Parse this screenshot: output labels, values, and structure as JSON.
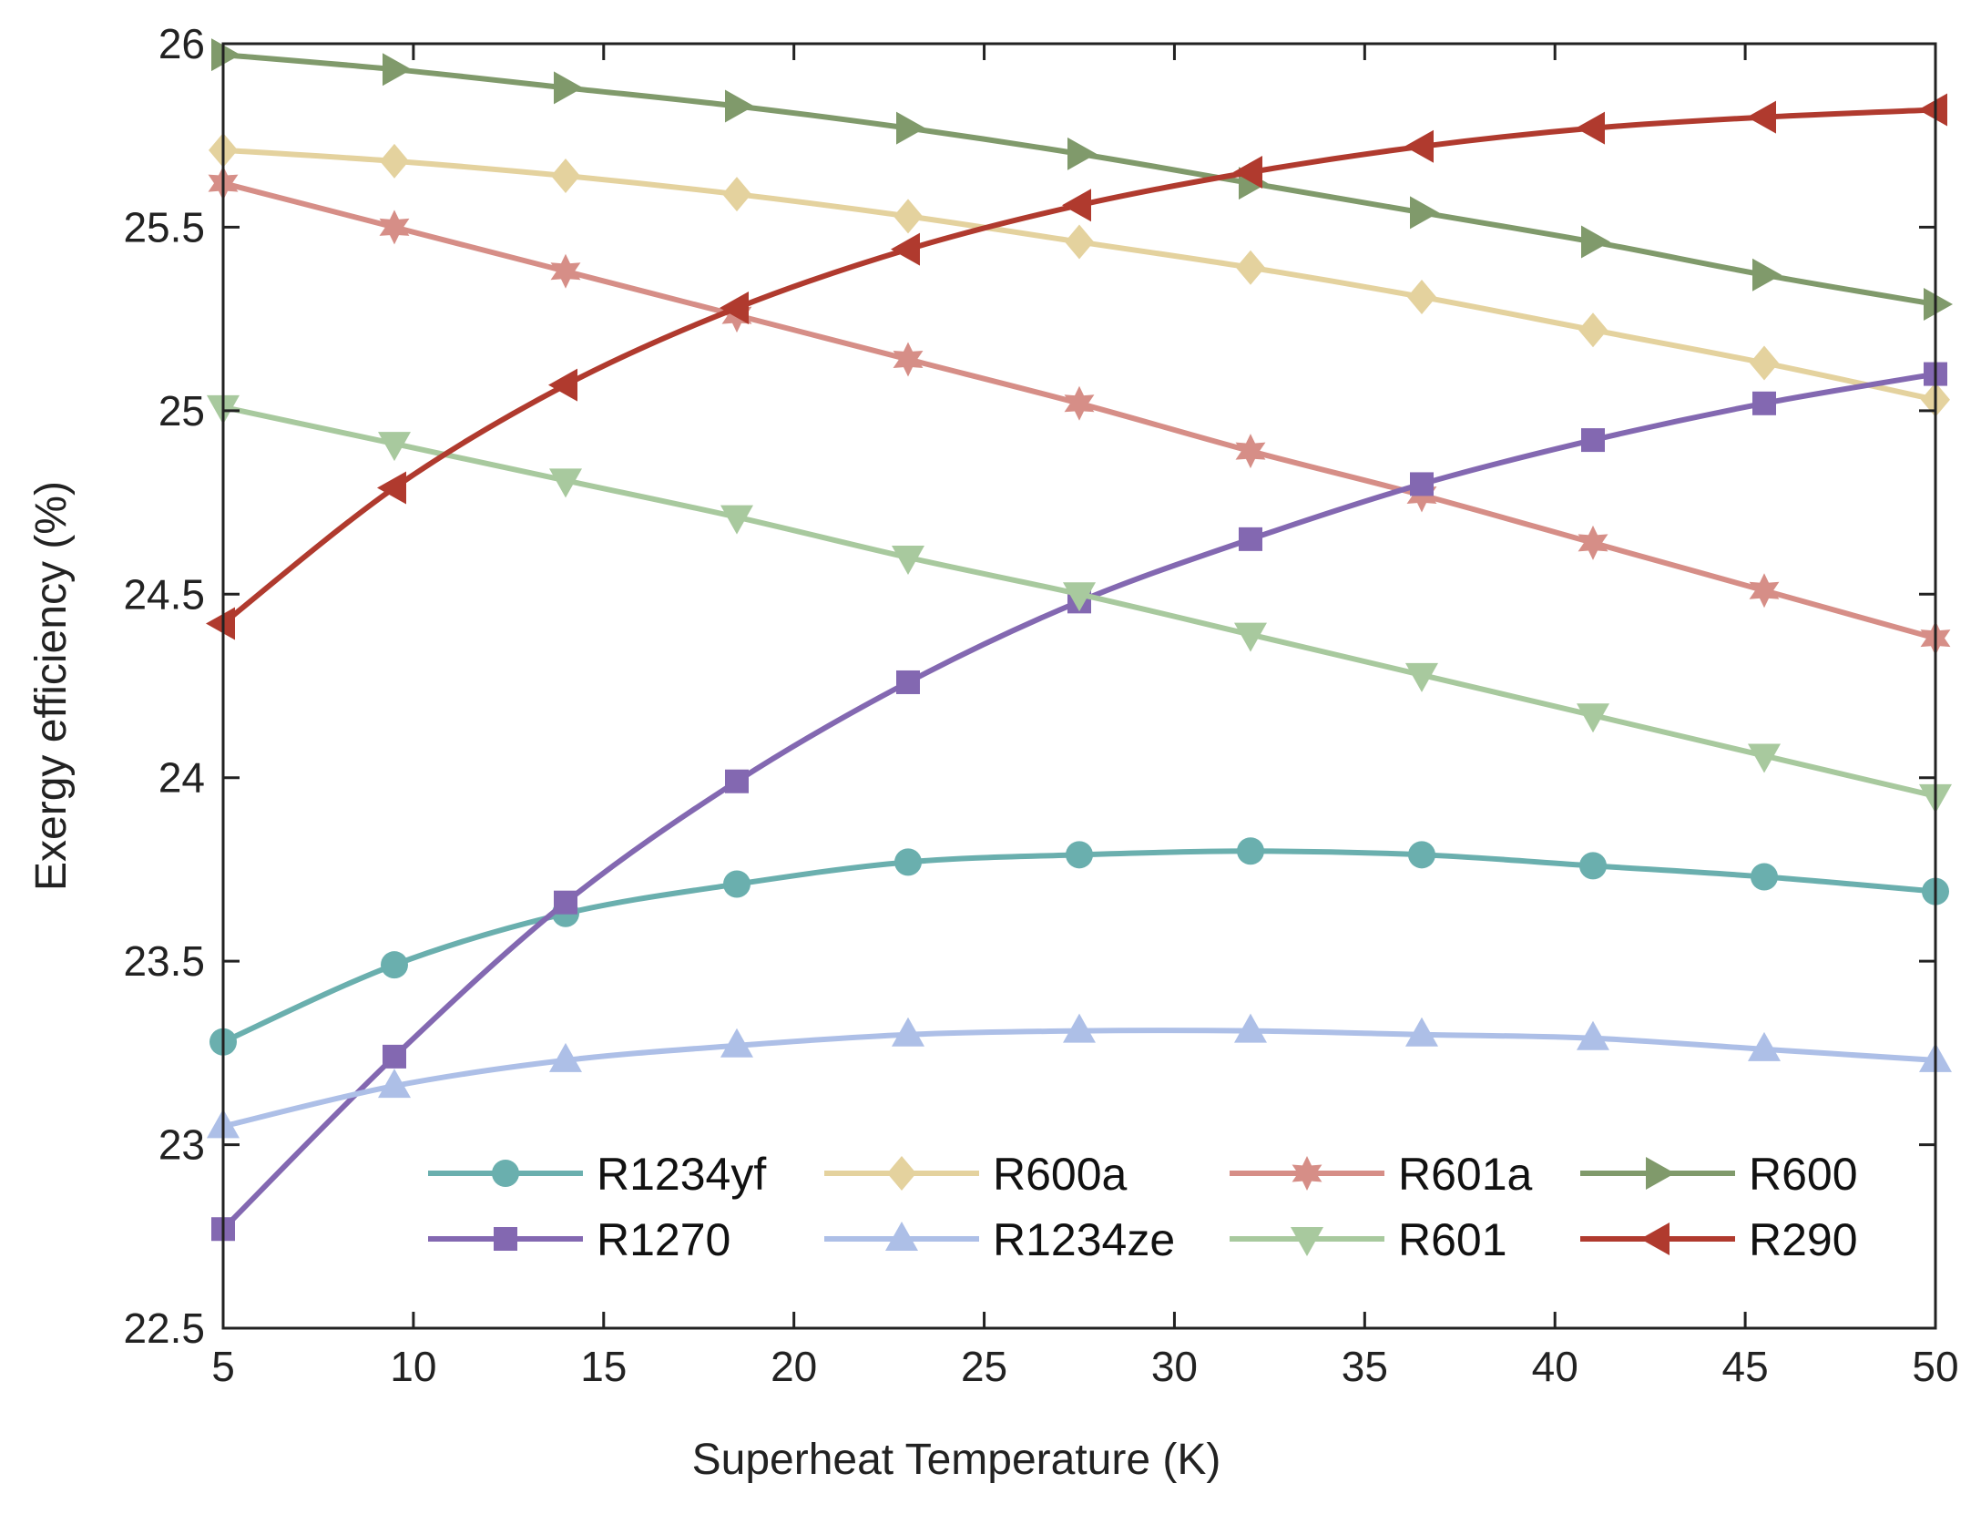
{
  "chart_data": {
    "type": "line",
    "title": "",
    "xlabel": "Superheat Temperature (K)",
    "ylabel": "Exergy efficiency (%)",
    "xlim": [
      5,
      50
    ],
    "ylim": [
      22.5,
      26
    ],
    "xticks": [
      5,
      10,
      15,
      20,
      25,
      30,
      35,
      40,
      45,
      50
    ],
    "xtick_labels": [
      "5",
      "10",
      "15",
      "20",
      "25",
      "30",
      "35",
      "40",
      "45",
      "50"
    ],
    "yticks": [
      22.5,
      23,
      23.5,
      24,
      24.5,
      25,
      25.5,
      26
    ],
    "ytick_labels": [
      "22.5",
      "23",
      "23.5",
      "24",
      "24.5",
      "25",
      "25.5",
      "26"
    ],
    "grid": false,
    "legend_position": "bottom-center inside",
    "x": [
      5,
      9.5,
      14,
      18.5,
      23,
      27.5,
      32,
      36.5,
      41,
      45.5,
      50
    ],
    "series": [
      {
        "name": "R1234yf",
        "color": "#6aafae",
        "marker": "circle",
        "values": [
          23.28,
          23.49,
          23.63,
          23.71,
          23.77,
          23.79,
          23.8,
          23.79,
          23.76,
          23.73,
          23.69
        ]
      },
      {
        "name": "R600a",
        "color": "#e4d29e",
        "marker": "diamond",
        "values": [
          25.71,
          25.68,
          25.64,
          25.59,
          25.53,
          25.46,
          25.39,
          25.31,
          25.22,
          25.13,
          25.03
        ]
      },
      {
        "name": "R601a",
        "color": "#d68e87",
        "marker": "hexagram",
        "values": [
          25.62,
          25.5,
          25.38,
          25.26,
          25.14,
          25.02,
          24.89,
          24.77,
          24.64,
          24.51,
          24.38
        ]
      },
      {
        "name": "R600",
        "color": "#809a6b",
        "marker": "triangle-right",
        "values": [
          25.97,
          25.93,
          25.88,
          25.83,
          25.77,
          25.7,
          25.62,
          25.54,
          25.46,
          25.37,
          25.29
        ]
      },
      {
        "name": "R1270",
        "color": "#8368b1",
        "marker": "square",
        "values": [
          22.77,
          23.24,
          23.66,
          23.99,
          24.26,
          24.48,
          24.65,
          24.8,
          24.92,
          25.02,
          25.1
        ]
      },
      {
        "name": "R1234ze",
        "color": "#adbfe7",
        "marker": "triangle-up",
        "values": [
          23.05,
          23.16,
          23.23,
          23.27,
          23.3,
          23.31,
          23.31,
          23.3,
          23.29,
          23.26,
          23.23
        ]
      },
      {
        "name": "R601",
        "color": "#a8c99e",
        "marker": "triangle-down",
        "values": [
          25.01,
          24.91,
          24.81,
          24.71,
          24.6,
          24.5,
          24.39,
          24.28,
          24.17,
          24.06,
          23.95
        ]
      },
      {
        "name": "R290",
        "color": "#b03a2e",
        "marker": "triangle-left",
        "values": [
          24.42,
          24.79,
          25.07,
          25.28,
          25.44,
          25.56,
          25.65,
          25.72,
          25.77,
          25.8,
          25.82
        ]
      }
    ]
  }
}
